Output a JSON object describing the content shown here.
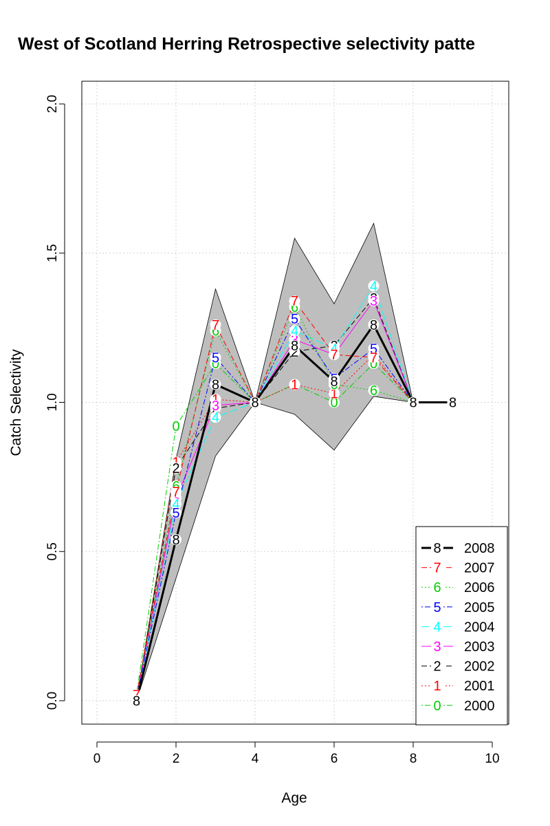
{
  "chart_data": {
    "type": "line",
    "title": "West of Scotland Herring Retrospective selectivity patte",
    "xlabel": "Age",
    "ylabel": "Catch Selectivity",
    "xlim": [
      -0.4,
      10.4
    ],
    "ylim": [
      -0.08,
      2.08
    ],
    "xticks": [
      "0",
      "2",
      "4",
      "6",
      "8",
      "10"
    ],
    "yticks": [
      "0.0",
      "0.5",
      "1.0",
      "1.5",
      "2.0"
    ],
    "grid": true,
    "legend_position": "bottom-right",
    "band": {
      "x": [
        1,
        2,
        3,
        4,
        5,
        6,
        7,
        8
      ],
      "lower": [
        0.0,
        0.41,
        0.82,
        1.0,
        0.96,
        0.84,
        1.02,
        1.0
      ],
      "upper": [
        0.0,
        0.81,
        1.38,
        1.0,
        1.55,
        1.33,
        1.6,
        1.0
      ],
      "color": "#bebebe"
    },
    "series": [
      {
        "name": "2008",
        "label": "8",
        "color": "#000000",
        "dash": "solid",
        "width": 3,
        "x": [
          1,
          2,
          3,
          4,
          5,
          6,
          7,
          8,
          9
        ],
        "values": [
          0.0,
          0.54,
          1.06,
          1.0,
          1.19,
          1.07,
          1.26,
          1.0,
          1.0
        ]
      },
      {
        "name": "2007",
        "label": "7",
        "color": "#ff0000",
        "dash": "dashed",
        "width": 1,
        "x": [
          1,
          2,
          3,
          4,
          5,
          6,
          7,
          8,
          9
        ],
        "values": [
          0.02,
          0.7,
          1.26,
          1.0,
          1.34,
          1.16,
          1.15,
          1.0,
          1.0
        ]
      },
      {
        "name": "2006",
        "label": "6",
        "color": "#00cd00",
        "dash": "dotted",
        "width": 1,
        "x": [
          1,
          2,
          3,
          4,
          5,
          6,
          7,
          8,
          9
        ],
        "values": [
          0.02,
          0.72,
          1.24,
          1.0,
          1.32,
          1.06,
          1.04,
          1.0,
          1.0
        ]
      },
      {
        "name": "2005",
        "label": "5",
        "color": "#0000ff",
        "dash": "dotdash",
        "width": 1,
        "x": [
          1,
          2,
          3,
          4,
          5,
          6,
          7,
          8,
          9
        ],
        "values": [
          0.01,
          0.63,
          1.15,
          1.0,
          1.28,
          1.08,
          1.18,
          1.0,
          1.0
        ]
      },
      {
        "name": "2004",
        "label": "4",
        "color": "#00ffff",
        "dash": "longdash",
        "width": 1,
        "x": [
          1,
          2,
          3,
          4,
          5,
          6,
          7,
          8,
          9
        ],
        "values": [
          0.01,
          0.66,
          0.95,
          1.0,
          1.24,
          1.18,
          1.39,
          1.0,
          1.0
        ]
      },
      {
        "name": "2003",
        "label": "3",
        "color": "#ff00ff",
        "dash": "solid",
        "width": 1,
        "x": [
          1,
          2,
          3,
          4,
          5,
          6,
          7,
          8,
          9
        ],
        "values": [
          0.01,
          0.68,
          0.99,
          1.0,
          1.21,
          1.16,
          1.34,
          1.0,
          1.0
        ]
      },
      {
        "name": "2002",
        "label": "2",
        "color": "#000000",
        "dash": "dashed",
        "width": 1,
        "x": [
          1,
          2,
          3,
          4,
          5,
          6,
          7,
          8,
          9
        ],
        "values": [
          0.0,
          0.78,
          0.98,
          1.0,
          1.17,
          1.19,
          1.35,
          1.0,
          1.0
        ]
      },
      {
        "name": "2001",
        "label": "1",
        "color": "#ff0000",
        "dash": "dotted",
        "width": 1,
        "x": [
          1,
          2,
          3,
          4,
          5,
          6,
          7,
          8,
          9
        ],
        "values": [
          0.01,
          0.8,
          1.01,
          1.0,
          1.06,
          1.03,
          1.16,
          1.0,
          1.0
        ]
      },
      {
        "name": "2000",
        "label": "0",
        "color": "#00cd00",
        "dash": "dotdash",
        "width": 1,
        "x": [
          1,
          2,
          3,
          4,
          5,
          6,
          7,
          8,
          9
        ],
        "values": [
          0.02,
          0.92,
          1.13,
          1.0,
          1.06,
          1.0,
          1.13,
          1.0,
          1.0
        ]
      }
    ]
  }
}
